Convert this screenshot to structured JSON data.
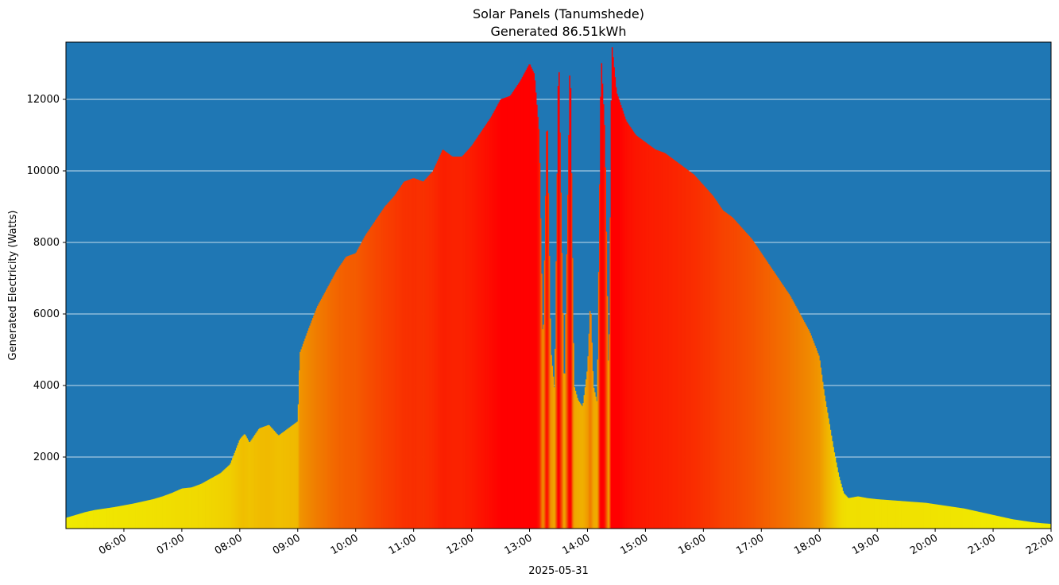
{
  "chart_data": {
    "type": "bar",
    "title": "Solar Panels (Tanumshede)",
    "subtitle": "Generated 86.51kWh",
    "xlabel": "2025-05-31",
    "ylabel": "Generated Electricity (Watts)",
    "x_start": "05:00",
    "x_end": "22:00",
    "ylim": [
      0,
      13600
    ],
    "grid": "horizontal",
    "background_color": "#1f77b4",
    "grid_color": "#ffffff",
    "color_scale": {
      "low": "#f0f000",
      "mid": "#f08000",
      "high": "#ff0000",
      "max_value": 12000
    },
    "x_ticks": [
      "06:00",
      "07:00",
      "08:00",
      "09:00",
      "10:00",
      "11:00",
      "12:00",
      "13:00",
      "14:00",
      "15:00",
      "16:00",
      "17:00",
      "18:00",
      "19:00",
      "20:00",
      "21:00",
      "22:00"
    ],
    "y_ticks": [
      2000,
      4000,
      6000,
      8000,
      10000,
      12000
    ],
    "points": [
      [
        "05:00",
        300
      ],
      [
        "05:10",
        380
      ],
      [
        "05:20",
        460
      ],
      [
        "05:30",
        520
      ],
      [
        "05:40",
        560
      ],
      [
        "05:50",
        600
      ],
      [
        "06:00",
        650
      ],
      [
        "06:10",
        700
      ],
      [
        "06:20",
        760
      ],
      [
        "06:30",
        820
      ],
      [
        "06:40",
        900
      ],
      [
        "06:50",
        1000
      ],
      [
        "07:00",
        1120
      ],
      [
        "07:10",
        1150
      ],
      [
        "07:20",
        1250
      ],
      [
        "07:30",
        1400
      ],
      [
        "07:40",
        1550
      ],
      [
        "07:50",
        1800
      ],
      [
        "08:00",
        2500
      ],
      [
        "08:05",
        2650
      ],
      [
        "08:10",
        2400
      ],
      [
        "08:20",
        2800
      ],
      [
        "08:30",
        2900
      ],
      [
        "08:40",
        2600
      ],
      [
        "08:50",
        2800
      ],
      [
        "09:00",
        3000
      ],
      [
        "09:02",
        4900
      ],
      [
        "09:10",
        5500
      ],
      [
        "09:20",
        6200
      ],
      [
        "09:30",
        6700
      ],
      [
        "09:40",
        7200
      ],
      [
        "09:50",
        7600
      ],
      [
        "10:00",
        7700
      ],
      [
        "10:10",
        8200
      ],
      [
        "10:20",
        8600
      ],
      [
        "10:30",
        9000
      ],
      [
        "10:40",
        9300
      ],
      [
        "10:50",
        9700
      ],
      [
        "11:00",
        9800
      ],
      [
        "11:10",
        9700
      ],
      [
        "11:20",
        10000
      ],
      [
        "11:30",
        10600
      ],
      [
        "11:40",
        10400
      ],
      [
        "11:50",
        10400
      ],
      [
        "12:00",
        10700
      ],
      [
        "12:10",
        11100
      ],
      [
        "12:20",
        11500
      ],
      [
        "12:30",
        12000
      ],
      [
        "12:40",
        12100
      ],
      [
        "12:50",
        12500
      ],
      [
        "13:00",
        13000
      ],
      [
        "13:05",
        12700
      ],
      [
        "13:10",
        11000
      ],
      [
        "13:14",
        4800
      ],
      [
        "13:18",
        12000
      ],
      [
        "13:22",
        5000
      ],
      [
        "13:26",
        3800
      ],
      [
        "13:30",
        13600
      ],
      [
        "13:36",
        3500
      ],
      [
        "13:42",
        13500
      ],
      [
        "13:46",
        4000
      ],
      [
        "13:50",
        3600
      ],
      [
        "13:55",
        3400
      ],
      [
        "14:00",
        4500
      ],
      [
        "14:03",
        6400
      ],
      [
        "14:06",
        4000
      ],
      [
        "14:10",
        3500
      ],
      [
        "14:14",
        13300
      ],
      [
        "14:18",
        11000
      ],
      [
        "14:22",
        3800
      ],
      [
        "14:25",
        13600
      ],
      [
        "14:30",
        12200
      ],
      [
        "14:40",
        11400
      ],
      [
        "14:50",
        11000
      ],
      [
        "15:00",
        10800
      ],
      [
        "15:10",
        10600
      ],
      [
        "15:20",
        10500
      ],
      [
        "15:30",
        10300
      ],
      [
        "15:40",
        10100
      ],
      [
        "15:50",
        9900
      ],
      [
        "16:00",
        9600
      ],
      [
        "16:10",
        9300
      ],
      [
        "16:20",
        8900
      ],
      [
        "16:30",
        8700
      ],
      [
        "16:40",
        8400
      ],
      [
        "16:50",
        8100
      ],
      [
        "17:00",
        7700
      ],
      [
        "17:10",
        7300
      ],
      [
        "17:20",
        6900
      ],
      [
        "17:30",
        6500
      ],
      [
        "17:40",
        6000
      ],
      [
        "17:50",
        5500
      ],
      [
        "18:00",
        4800
      ],
      [
        "18:05",
        3800
      ],
      [
        "18:10",
        3000
      ],
      [
        "18:15",
        2200
      ],
      [
        "18:20",
        1500
      ],
      [
        "18:25",
        1000
      ],
      [
        "18:30",
        850
      ],
      [
        "18:40",
        900
      ],
      [
        "18:50",
        850
      ],
      [
        "19:00",
        820
      ],
      [
        "19:10",
        800
      ],
      [
        "19:20",
        780
      ],
      [
        "19:30",
        760
      ],
      [
        "19:40",
        740
      ],
      [
        "19:50",
        720
      ],
      [
        "20:00",
        680
      ],
      [
        "20:10",
        640
      ],
      [
        "20:20",
        600
      ],
      [
        "20:30",
        560
      ],
      [
        "20:40",
        500
      ],
      [
        "20:50",
        440
      ],
      [
        "21:00",
        380
      ],
      [
        "21:10",
        320
      ],
      [
        "21:20",
        260
      ],
      [
        "21:30",
        220
      ],
      [
        "21:40",
        180
      ],
      [
        "21:50",
        150
      ],
      [
        "22:00",
        130
      ]
    ]
  }
}
